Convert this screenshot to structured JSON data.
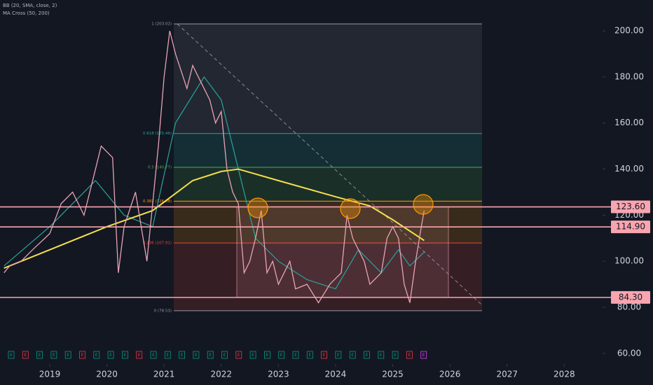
{
  "chart_data": {
    "type": "line",
    "indicators": [
      "BB (20, SMA, close, 2)",
      "MA Cross (50, 200)"
    ],
    "x": [
      2018.2,
      2018.3,
      2018.5,
      2018.7,
      2019.0,
      2019.2,
      2019.4,
      2019.6,
      2019.8,
      2019.9,
      2020.1,
      2020.2,
      2020.3,
      2020.5,
      2020.7,
      2020.8,
      2020.9,
      2021.0,
      2021.1,
      2021.2,
      2021.4,
      2021.5,
      2021.6,
      2021.8,
      2021.9,
      2022.0,
      2022.1,
      2022.2,
      2022.3,
      2022.4,
      2022.5,
      2022.6,
      2022.7,
      2022.8,
      2022.9,
      2023.0,
      2023.2,
      2023.3,
      2023.5,
      2023.7,
      2023.9,
      2024.1,
      2024.2,
      2024.3,
      2024.5,
      2024.6,
      2024.8,
      2024.9,
      2025.0,
      2025.1,
      2025.2,
      2025.3,
      2025.4,
      2025.5,
      2025.55
    ],
    "series": [
      {
        "color": "#e8a3b4",
        "values": [
          95,
          98,
          100,
          105,
          112,
          125,
          130,
          120,
          140,
          150,
          145,
          95,
          115,
          130,
          100,
          125,
          150,
          180,
          200,
          190,
          175,
          185,
          180,
          170,
          160,
          165,
          140,
          130,
          125,
          95,
          100,
          110,
          122,
          95,
          100,
          90,
          100,
          88,
          90,
          82,
          90,
          95,
          120,
          110,
          100,
          90,
          95,
          110,
          115,
          110,
          90,
          82,
          100,
          115,
          122
        ]
      }
    ],
    "ma": [
      {
        "color": "#26a69a",
        "x": [
          2018.2,
          2019.0,
          2019.8,
          2020.3,
          2020.8,
          2021.2,
          2021.7,
          2022.0,
          2022.3,
          2022.6,
          2023.0,
          2023.5,
          2024.0,
          2024.4,
          2024.8,
          2025.1,
          2025.3,
          2025.55
        ],
        "values": [
          98,
          115,
          135,
          120,
          115,
          160,
          180,
          170,
          140,
          110,
          100,
          92,
          88,
          105,
          95,
          105,
          98,
          104
        ]
      },
      {
        "color": "#f3e04a",
        "x": [
          2018.2,
          2019.0,
          2020.0,
          2020.8,
          2021.5,
          2022.0,
          2022.3,
          2023.0,
          2024.0,
          2024.6,
          2025.0,
          2025.55
        ],
        "values": [
          97,
          105,
          115,
          122,
          135,
          139,
          140,
          135,
          128,
          124,
          118,
          109
        ]
      }
    ],
    "fib_levels": [
      {
        "label": "1 (203.02)",
        "value": 203.02,
        "color": "#9598a1"
      },
      {
        "label": "0.618 (155.46)",
        "value": 155.46,
        "color": "#26a69a"
      },
      {
        "label": "0.5 (140.77)",
        "value": 140.77,
        "color": "#4caf50"
      },
      {
        "label": "0.382 (126.08)",
        "value": 126.08,
        "color": "#ff9800"
      },
      {
        "label": "0.236 (107.91)",
        "value": 107.91,
        "color": "#f44336"
      },
      {
        "label": "0 (78.53)",
        "value": 78.53,
        "color": "#9598a1"
      }
    ],
    "levels": [
      {
        "value": 123.6,
        "label": "123.60"
      },
      {
        "value": 114.9,
        "label": "114.90"
      },
      {
        "value": 84.3,
        "label": "84.30"
      }
    ],
    "event_label": "E",
    "xlim": [
      2018.13,
      2028.67
    ],
    "xticks": [
      2019,
      2020,
      2021,
      2022,
      2023,
      2024,
      2025,
      2026,
      2027,
      2028
    ],
    "ylim": [
      55.4,
      213.4
    ],
    "yticks": [
      {
        "value": 60,
        "label": "60.00"
      },
      {
        "value": 80,
        "label": "80.00"
      },
      {
        "value": 100,
        "label": "100.00"
      },
      {
        "value": 120,
        "label": "120.00"
      },
      {
        "value": 140,
        "label": "140.00"
      },
      {
        "value": 160,
        "label": "160.00"
      },
      {
        "value": 180,
        "label": "180.00"
      },
      {
        "value": 200,
        "label": "200.00"
      }
    ]
  }
}
